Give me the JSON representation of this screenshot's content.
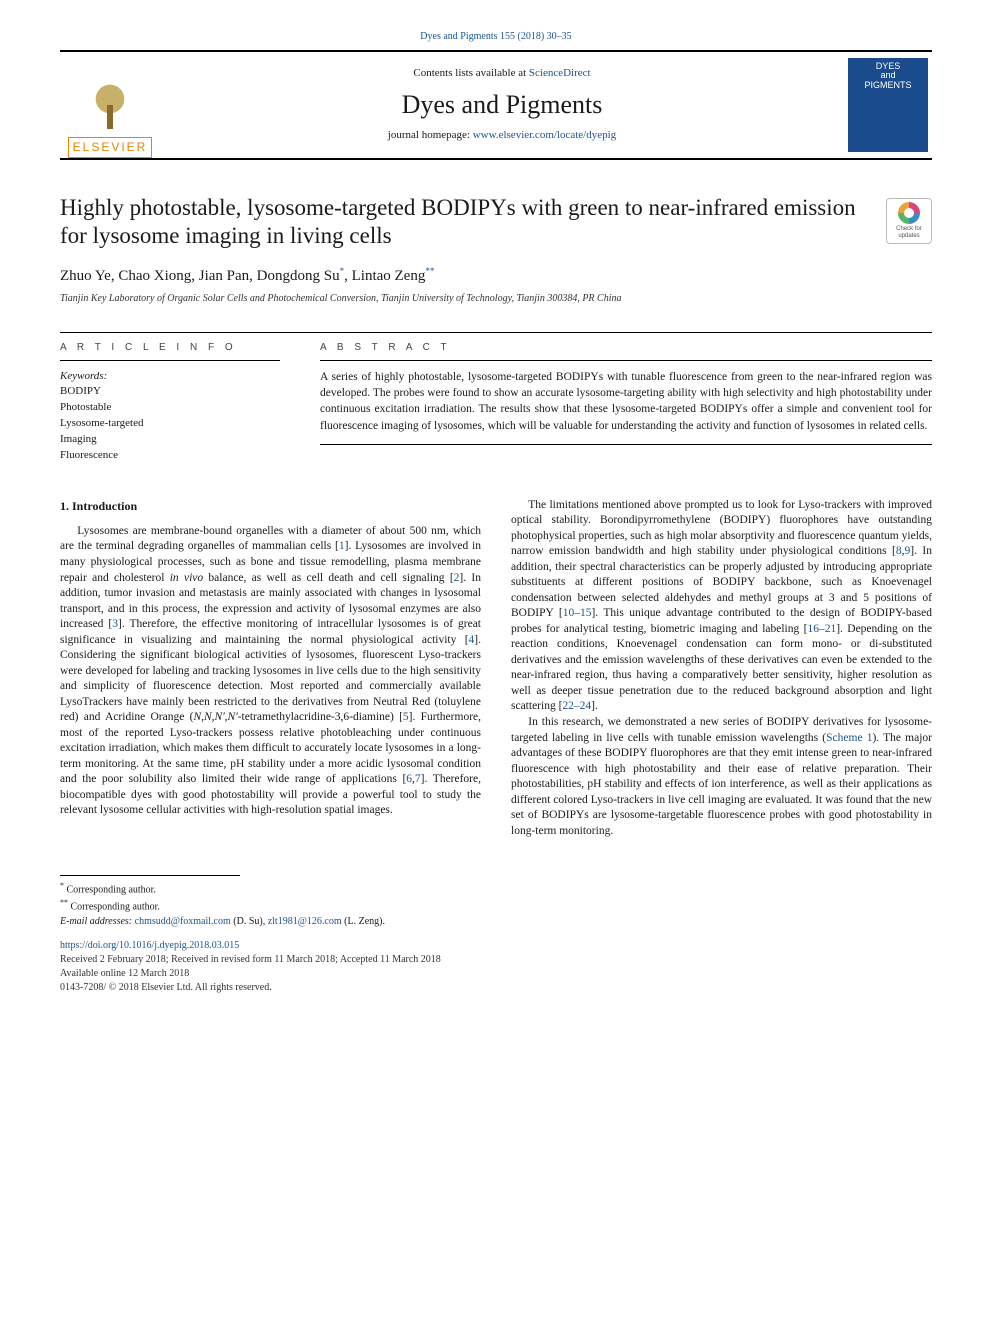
{
  "header": {
    "top_link_text": "Dyes and Pigments 155 (2018) 30–35",
    "contents_prefix": "Contents lists available at ",
    "contents_link": "ScienceDirect",
    "journal_title": "Dyes and Pigments",
    "homepage_prefix": "journal homepage: ",
    "homepage_link": "www.elsevier.com/locate/dyepig",
    "publisher_name": "ELSEVIER",
    "cover_line1": "DYES",
    "cover_line2": "and",
    "cover_line3": "PIGMENTS"
  },
  "title": "Highly photostable, lysosome-targeted BODIPYs with green to near-infrared emission for lysosome imaging in living cells",
  "check_updates_label": "Check for updates",
  "authors_line": "Zhuo Ye, Chao Xiong, Jian Pan, Dongdong Su",
  "author_mark1": "*",
  "author_last": ", Lintao Zeng",
  "author_mark2": "**",
  "affiliation": "Tianjin Key Laboratory of Organic Solar Cells and Photochemical Conversion, Tianjin University of Technology, Tianjin 300384, PR China",
  "article_info_heading": "A R T I C L E  I N F O",
  "abstract_heading": "A B S T R A C T",
  "keywords_label": "Keywords:",
  "keywords": [
    "BODIPY",
    "Photostable",
    "Lysosome-targeted",
    "Imaging",
    "Fluorescence"
  ],
  "abstract_text": "A series of highly photostable, lysosome-targeted BODIPYs with tunable fluorescence from green to the near-infrared region was developed. The probes were found to show an accurate lysosome-targeting ability with high selectivity and high photostability under continuous excitation irradiation. The results show that these lysosome-targeted BODIPYs offer a simple and convenient tool for fluorescence imaging of lysosomes, which will be valuable for understanding the activity and function of lysosomes in related cells.",
  "section1_heading": "1. Introduction",
  "para1a": "Lysosomes are membrane-bound organelles with a diameter of about 500 nm, which are the terminal degrading organelles of mammalian cells [",
  "ref1": "1",
  "para1b": "]. Lysosomes are involved in many physiological processes, such as bone and tissue remodelling, plasma membrane repair and cholesterol ",
  "para1_ital": "in vivo",
  "para1c": " balance, as well as cell death and cell signaling [",
  "ref2": "2",
  "para1d": "]. In addition, tumor invasion and metastasis are mainly associated with changes in lysosomal transport, and in this process, the expression and activity of lysosomal enzymes are also increased [",
  "ref3": "3",
  "para1e": "]. Therefore, the effective monitoring of intracellular lysosomes is of great significance in visualizing and maintaining the normal physiological activity [",
  "ref4": "4",
  "para1f": "]. Considering the significant biological activities of lysosomes, fluorescent Lyso-trackers were developed for labeling and tracking lysosomes in live cells due to the high sensitivity and simplicity of fluorescence detection. Most reported and commercially available LysoTrackers have mainly been restricted to the derivatives from Neutral Red (toluylene red) and Acridine Orange (",
  "para1_ital2": "N,N,N',N'",
  "para1g": "-tetramethylacridine-3,6-diamine) [",
  "ref5": "5",
  "para1h": "]. Furthermore, most of the reported Lyso-trackers possess relative photobleaching under continuous excitation irradiation, which makes them difficult to accurately locate lysosomes in a long-term monitoring. At the same time, pH stability under a more acidic lysosomal condition and the poor solubility also limited their wide range of applications [",
  "ref6": "6",
  "para1i": ",",
  "ref7": "7",
  "para1j": "]. Therefore, biocompatible dyes with good photostability will provide a powerful tool to study the relevant lysosome cellular activities with high-resolution spatial images.",
  "para2a": "The limitations mentioned above prompted us to look for Lyso-",
  "para2b": "trackers with improved optical stability. Borondipyrromethylene (BODIPY) fluorophores have outstanding photophysical properties, such as high molar absorptivity and fluorescence quantum yields, narrow emission bandwidth and high stability under physiological conditions [",
  "ref8": "8",
  "para2c": ",",
  "ref9": "9",
  "para2d": "]. In addition, their spectral characteristics can be properly adjusted by introducing appropriate substituents at different positions of BODIPY backbone, such as Knoevenagel condensation between selected aldehydes and methyl groups at 3 and 5 positions of BODIPY [",
  "ref10": "10–15",
  "para2e": "]. This unique advantage contributed to the design of BODIPY-based probes for analytical testing, biometric imaging and labeling [",
  "ref16": "16–21",
  "para2f": "]. Depending on the reaction conditions, Knoevenagel condensation can form mono- or di-substituted derivatives and the emission wavelengths of these derivatives can even be extended to the near-infrared region, thus having a comparatively better sensitivity, higher resolution as well as deeper tissue penetration due to the reduced background absorption and light scattering [",
  "ref22": "22–24",
  "para2g": "].",
  "para3a": "In this research, we demonstrated a new series of BODIPY derivatives for lysosome-targeted labeling in live cells with tunable emission wavelengths (",
  "scheme_ref": "Scheme 1",
  "para3b": "). The major advantages of these BODIPY fluorophores are that they emit intense green to near-infrared fluorescence with high photostability and their ease of relative preparation. Their photostabilities, pH stability and effects of ion interference, as well as their applications as different colored Lyso-trackers in live cell imaging are evaluated. It was found that the new set of BODIPYs are lysosome-targetable fluorescence probes with good photostability in long-term monitoring.",
  "footnotes": {
    "fn1_mark": "*",
    "fn1_text": " Corresponding author.",
    "fn2_mark": "**",
    "fn2_text": " Corresponding author.",
    "email_label": "E-mail addresses: ",
    "email1": "chmsudd@foxmail.com",
    "email1_who": " (D. Su), ",
    "email2": "zlt1981@126.com",
    "email2_who": " (L. Zeng)."
  },
  "doi": {
    "link": "https://doi.org/10.1016/j.dyepig.2018.03.015",
    "received": "Received 2 February 2018; Received in revised form 11 March 2018; Accepted 11 March 2018",
    "available": "Available online 12 March 2018",
    "copyright": "0143-7208/ © 2018 Elsevier Ltd. All rights reserved."
  },
  "colors": {
    "link": "#1a5490",
    "publisher_orange": "#e98300",
    "cover_blue": "#1a4b8c"
  }
}
